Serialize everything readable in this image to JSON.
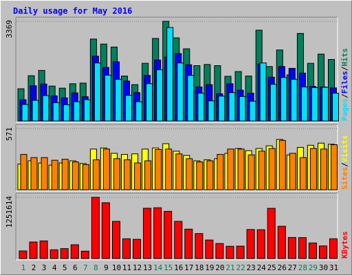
{
  "chart_data": {
    "type": "bar",
    "title": "Daily usage for May 2016",
    "categories": [
      "1",
      "2",
      "3",
      "4",
      "5",
      "6",
      "7",
      "8",
      "9",
      "10",
      "11",
      "12",
      "13",
      "14",
      "15",
      "16",
      "17",
      "18",
      "19",
      "20",
      "21",
      "22",
      "23",
      "24",
      "25",
      "26",
      "27",
      "28",
      "29",
      "30",
      "31"
    ],
    "weekend_days": [
      "1",
      "7",
      "8",
      "14",
      "15",
      "21",
      "22",
      "28",
      "29"
    ],
    "panels": [
      {
        "id": "top",
        "ymax_label": "3369",
        "ylim": [
          0,
          3369
        ],
        "series": [
          {
            "name": "Hits",
            "color": "#00805c",
            "values": [
              1090,
              1530,
              1710,
              1180,
              1110,
              1260,
              1280,
              2770,
              2600,
              2500,
              1520,
              1230,
              1950,
              2790,
              3369,
              2810,
              2440,
              1870,
              1910,
              1870,
              1510,
              1670,
              1520,
              3070,
              1840,
              2400,
              1560,
              2960,
              1950,
              2260,
              2080
            ]
          },
          {
            "name": "Files",
            "color": "#0000ff",
            "values": [
              720,
              1190,
              1250,
              850,
              780,
              950,
              820,
              2190,
              1810,
              2000,
              1350,
              960,
              1540,
              2060,
              2160,
              2280,
              1900,
              1150,
              1230,
              920,
              1260,
              1040,
              940,
              1930,
              1480,
              1840,
              1780,
              1620,
              1170,
              1150,
              1120
            ]
          },
          {
            "name": "Pages",
            "color": "#00e0ff",
            "values": [
              560,
              700,
              860,
              620,
              550,
              650,
              720,
              1960,
              1550,
              1410,
              870,
              650,
              1260,
              1730,
              3160,
              1960,
              1540,
              940,
              680,
              840,
              960,
              830,
              670,
              1960,
              1240,
              1470,
              1410,
              1150,
              1130,
              1140,
              940
            ]
          }
        ]
      },
      {
        "id": "mid",
        "ymax_label": "571",
        "ylim": [
          0,
          571
        ],
        "series": [
          {
            "name": "Visits",
            "color": "#ffff00",
            "values": [
              240,
              270,
              250,
              230,
              250,
              270,
              245,
              380,
              390,
              340,
              330,
              335,
              380,
              390,
              430,
              360,
              320,
              270,
              280,
              290,
              340,
              385,
              365,
              385,
              410,
              470,
              325,
              395,
              415,
              435,
              425
            ]
          },
          {
            "name": "Sites",
            "color": "#ff8000",
            "values": [
              330,
              300,
              300,
              275,
              285,
              260,
              235,
              280,
              380,
              290,
              280,
              250,
              270,
              375,
              380,
              335,
              290,
              260,
              270,
              330,
              380,
              380,
              325,
              360,
              385,
              460,
              340,
              300,
              385,
              380,
              420
            ]
          }
        ]
      },
      {
        "id": "bot",
        "ymax_label": "1251614",
        "ylim": [
          0,
          1251614
        ],
        "series": [
          {
            "name": "KBytes",
            "color": "#ff0000",
            "values": [
              154000,
              338000,
              360000,
              179000,
              203000,
              281000,
              150000,
              1251614,
              1140000,
              760000,
              404000,
              392000,
              1028000,
              1038000,
              965000,
              760000,
              600000,
              510000,
              378000,
              307000,
              250000,
              253000,
              594000,
              589000,
              1027000,
              660000,
              430000,
              428000,
              318000,
              257000,
              404000
            ]
          }
        ]
      }
    ],
    "legend": [
      {
        "panel": "top",
        "items": [
          {
            "text": "Pages",
            "color": "#00e0ff"
          },
          {
            "text": "Files",
            "color": "#0000ff"
          },
          {
            "text": "Hits",
            "color": "#00805c"
          }
        ]
      },
      {
        "panel": "mid",
        "items": [
          {
            "text": "Sites",
            "color": "#ff8000"
          },
          {
            "text": "Visits",
            "color": "#ffff00"
          }
        ]
      },
      {
        "panel": "bot",
        "items": [
          {
            "text": "KBytes",
            "color": "#ff0000"
          }
        ]
      }
    ],
    "separator": "/",
    "day_label_colors": {
      "weekday": "#000000",
      "weekend": "#00805c"
    }
  }
}
